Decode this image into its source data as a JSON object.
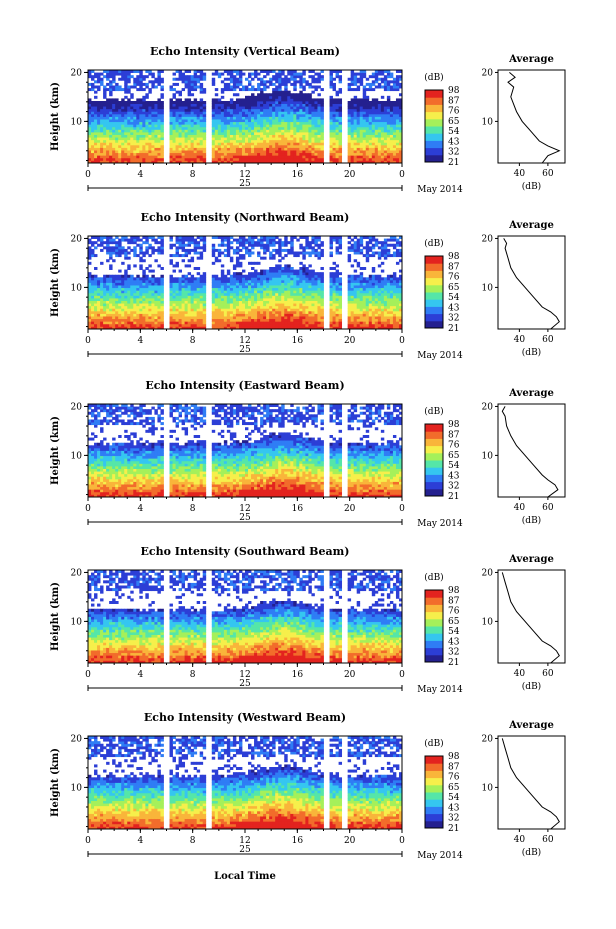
{
  "figure": {
    "xlabel_bottom": "Local Time"
  },
  "colorbar": {
    "unit": "(dB)",
    "levels": [
      21,
      32,
      43,
      54,
      65,
      76,
      87,
      98
    ],
    "colors": [
      "#24208f",
      "#2c3ed6",
      "#2f7df5",
      "#35c6f0",
      "#55e6a8",
      "#a5f05a",
      "#f6ef4b",
      "#f9b53a",
      "#f26c2b",
      "#e3231f"
    ]
  },
  "average_panel": {
    "title": "Average",
    "xlabel": "(dB)",
    "xticks": [
      40,
      60
    ],
    "yticks": [
      10,
      20
    ]
  },
  "chart_data": [
    {
      "type": "heatmap",
      "title": "Echo Intensity (Vertical Beam)",
      "ylabel": "Height (km)",
      "xticks": [
        "0",
        "4",
        "8",
        "12",
        "16",
        "20",
        "0"
      ],
      "xlim": [
        0,
        24
      ],
      "ylim": [
        1.5,
        20.5
      ],
      "date_label": "25",
      "month_label": "May 2014",
      "gaps_hours": [
        [
          5.8,
          6.2
        ],
        [
          9,
          9.4
        ],
        [
          18,
          18.5
        ],
        [
          19.5,
          19.9
        ]
      ],
      "average_profile": [
        [
          56,
          1.5
        ],
        [
          60,
          3
        ],
        [
          68,
          4
        ],
        [
          60,
          5
        ],
        [
          54,
          6
        ],
        [
          48,
          8
        ],
        [
          42,
          10
        ],
        [
          38,
          12
        ],
        [
          34,
          15
        ],
        [
          36,
          17
        ],
        [
          32,
          18
        ],
        [
          37,
          19
        ],
        [
          33,
          20
        ]
      ]
    },
    {
      "type": "heatmap",
      "title": "Echo Intensity (Northward Beam)",
      "ylabel": "Height (km)",
      "xticks": [
        "0",
        "4",
        "8",
        "12",
        "16",
        "20",
        "0"
      ],
      "xlim": [
        0,
        24
      ],
      "ylim": [
        1.5,
        20.5
      ],
      "date_label": "25",
      "month_label": "May 2014",
      "gaps_hours": [
        [
          5.8,
          6.2
        ],
        [
          9,
          9.4
        ],
        [
          18,
          18.5
        ],
        [
          19.5,
          19.9
        ]
      ],
      "average_profile": [
        [
          62,
          1.5
        ],
        [
          68,
          3
        ],
        [
          66,
          4
        ],
        [
          62,
          5
        ],
        [
          56,
          6
        ],
        [
          50,
          8
        ],
        [
          44,
          10
        ],
        [
          38,
          12
        ],
        [
          34,
          14
        ],
        [
          32,
          16
        ],
        [
          30,
          18
        ],
        [
          31,
          19
        ],
        [
          29,
          20
        ]
      ]
    },
    {
      "type": "heatmap",
      "title": "Echo Intensity (Eastward Beam)",
      "ylabel": "Height (km)",
      "xticks": [
        "0",
        "4",
        "8",
        "12",
        "16",
        "20",
        "0"
      ],
      "xlim": [
        0,
        24
      ],
      "ylim": [
        1.5,
        20.5
      ],
      "date_label": "25",
      "month_label": "May 2014",
      "gaps_hours": [
        [
          5.8,
          6.2
        ],
        [
          9,
          9.4
        ],
        [
          18,
          18.5
        ],
        [
          19.5,
          19.9
        ]
      ],
      "average_profile": [
        [
          60,
          1.5
        ],
        [
          67,
          3
        ],
        [
          65,
          4
        ],
        [
          60,
          5
        ],
        [
          56,
          6
        ],
        [
          50,
          8
        ],
        [
          44,
          10
        ],
        [
          38,
          12
        ],
        [
          34,
          14
        ],
        [
          31,
          16
        ],
        [
          30,
          18
        ],
        [
          28,
          19
        ],
        [
          30,
          20
        ]
      ]
    },
    {
      "type": "heatmap",
      "title": "Echo Intensity (Southward Beam)",
      "ylabel": "Height (km)",
      "xticks": [
        "0",
        "4",
        "8",
        "12",
        "16",
        "20",
        "0"
      ],
      "xlim": [
        0,
        24
      ],
      "ylim": [
        1.5,
        20.5
      ],
      "date_label": "25",
      "month_label": "May 2014",
      "gaps_hours": [
        [
          5.8,
          6.2
        ],
        [
          9,
          9.4
        ],
        [
          18,
          18.5
        ],
        [
          19.5,
          19.9
        ]
      ],
      "average_profile": [
        [
          62,
          1.5
        ],
        [
          68,
          3
        ],
        [
          66,
          4
        ],
        [
          62,
          5
        ],
        [
          56,
          6
        ],
        [
          50,
          8
        ],
        [
          44,
          10
        ],
        [
          38,
          12
        ],
        [
          34,
          14
        ],
        [
          32,
          16
        ],
        [
          30,
          18
        ],
        [
          29,
          19
        ],
        [
          28,
          20
        ]
      ]
    },
    {
      "type": "heatmap",
      "title": "Echo Intensity (Westward Beam)",
      "ylabel": "Height (km)",
      "xticks": [
        "0",
        "4",
        "8",
        "12",
        "16",
        "20",
        "0"
      ],
      "xlim": [
        0,
        24
      ],
      "ylim": [
        1.5,
        20.5
      ],
      "date_label": "25",
      "month_label": "May 2014",
      "gaps_hours": [
        [
          5.8,
          6.2
        ],
        [
          9,
          9.4
        ],
        [
          18,
          18.5
        ],
        [
          19.5,
          19.9
        ]
      ],
      "average_profile": [
        [
          62,
          1.5
        ],
        [
          68,
          3
        ],
        [
          66,
          4
        ],
        [
          62,
          5
        ],
        [
          56,
          6
        ],
        [
          50,
          8
        ],
        [
          44,
          10
        ],
        [
          38,
          12
        ],
        [
          34,
          14
        ],
        [
          32,
          16
        ],
        [
          30,
          18
        ],
        [
          29,
          19
        ],
        [
          28,
          20
        ]
      ]
    }
  ]
}
